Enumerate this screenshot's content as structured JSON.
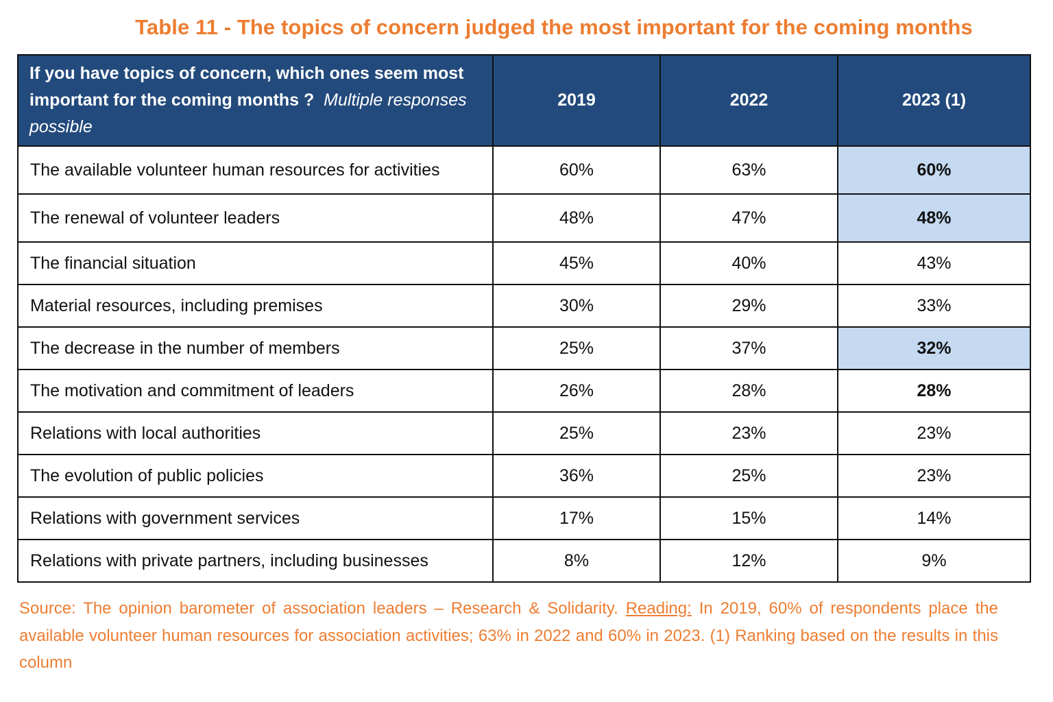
{
  "title": "Table 11 - The topics of concern judged the most important for the coming months",
  "table": {
    "question_main": "If you have topics of concern, which ones seem most important for the coming months ?",
    "question_note": "Multiple responses possible",
    "columns": [
      "2019",
      "2022",
      "2023 (1)"
    ],
    "rows": [
      {
        "label": "The available volunteer human resources for activities",
        "v2019": "60%",
        "v2022": "63%",
        "v2023": "60%"
      },
      {
        "label": "The renewal of volunteer leaders",
        "v2019": "48%",
        "v2022": "47%",
        "v2023": "48%"
      },
      {
        "label": "The financial situation",
        "v2019": "45%",
        "v2022": "40%",
        "v2023": "43%"
      },
      {
        "label": "Material resources, including premises",
        "v2019": "30%",
        "v2022": "29%",
        "v2023": "33%"
      },
      {
        "label": "The decrease in the number of members",
        "v2019": "25%",
        "v2022": "37%",
        "v2023": "32%"
      },
      {
        "label": "The motivation and commitment of leaders",
        "v2019": "26%",
        "v2022": "28%",
        "v2023": "28%"
      },
      {
        "label": "Relations with local authorities",
        "v2019": "25%",
        "v2022": "23%",
        "v2023": "23%"
      },
      {
        "label": "The evolution of public policies",
        "v2019": "36%",
        "v2022": "25%",
        "v2023": "23%"
      },
      {
        "label": "Relations with government services",
        "v2019": "17%",
        "v2022": "15%",
        "v2023": "14%"
      },
      {
        "label": "Relations with private partners, including businesses",
        "v2019": "8%",
        "v2022": "12%",
        "v2023": "9%"
      }
    ]
  },
  "source": {
    "prefix": "Source: The opinion barometer of association leaders – Research & Solidarity. ",
    "reading_label": "Reading:",
    "reading_text": " In 2019, 60% of respondents place the available volunteer human resources for association activities; 63% in 2022 and 60% in 2023. (1) Ranking based on the results in this column"
  },
  "colors": {
    "title": "#ED7D31",
    "header_bg": "#234A7C",
    "highlight_bg": "#C5D9F1",
    "source_text": "#ED7D31"
  }
}
